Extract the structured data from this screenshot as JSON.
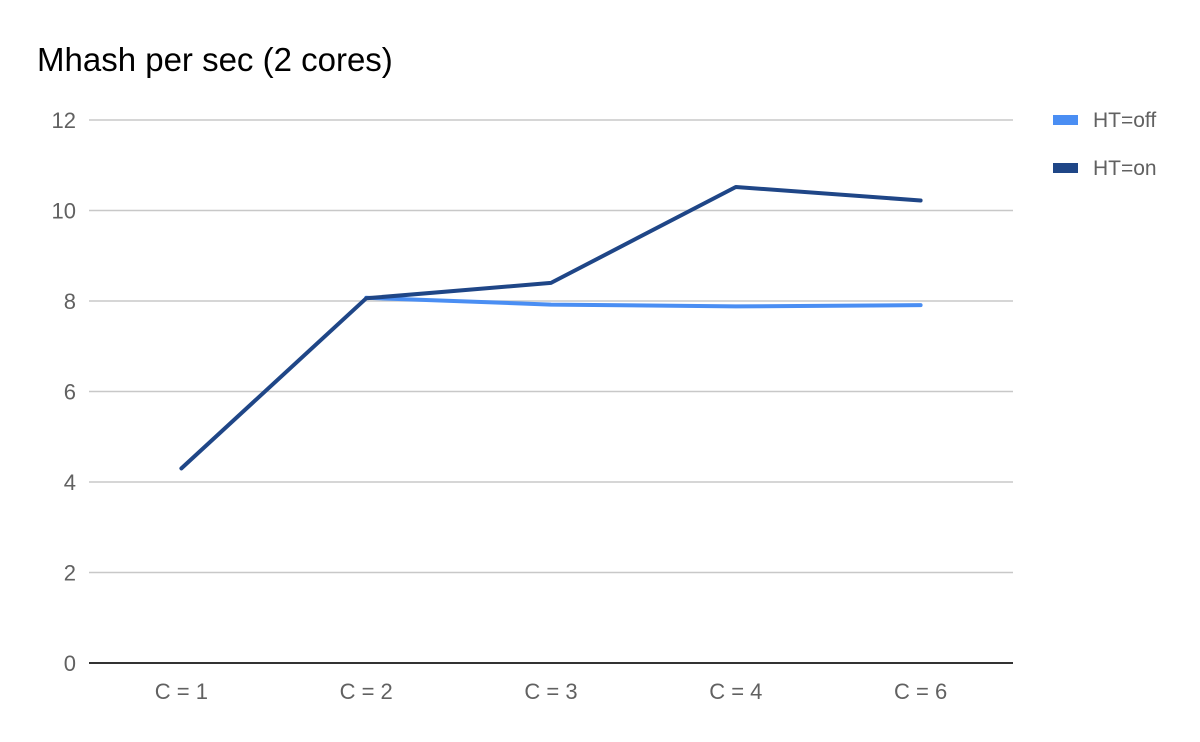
{
  "chart_data": {
    "type": "line",
    "title": "Mhash per sec (2 cores)",
    "xlabel": "",
    "ylabel": "",
    "categories": [
      "C = 1",
      "C = 2",
      "C = 3",
      "C = 4",
      "C = 6"
    ],
    "series": [
      {
        "name": "HT=off",
        "color": "#4a8ef3",
        "values": [
          null,
          8.07,
          7.92,
          7.88,
          7.91
        ]
      },
      {
        "name": "HT=on",
        "color": "#1f4687",
        "values": [
          4.3,
          8.06,
          8.4,
          10.52,
          10.22
        ]
      }
    ],
    "ylim": [
      0,
      12
    ],
    "yticks": [
      0,
      2,
      4,
      6,
      8,
      10,
      12
    ],
    "grid": true,
    "legend_position": "right"
  }
}
